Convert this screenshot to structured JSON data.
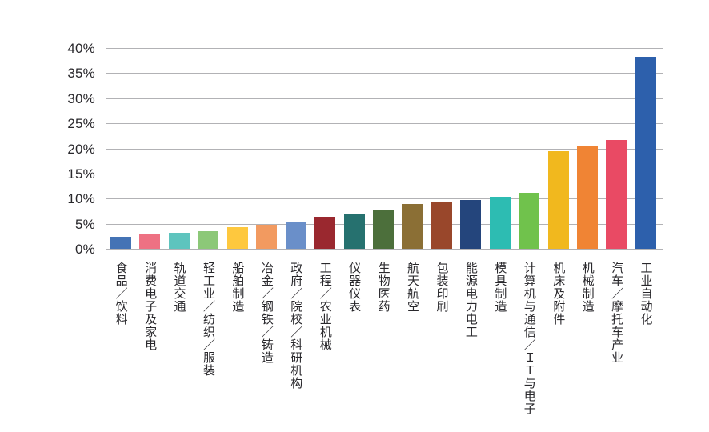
{
  "chart_data": {
    "type": "bar",
    "title": "",
    "xlabel": "",
    "ylabel": "",
    "unit": "%",
    "ylim": [
      0,
      40
    ],
    "grid": "horizontal-only",
    "legend": "none",
    "y_tick_labels": [
      "40%",
      "35%",
      "30%",
      "25%",
      "20%",
      "15%",
      "10%",
      "5%",
      "0%"
    ],
    "y_tick_values": [
      40,
      35,
      30,
      25,
      20,
      15,
      10,
      5,
      0
    ],
    "categories": [
      "食品／饮料",
      "消费电子及家电",
      "轨道交通",
      "轻工业／纺织／服装",
      "船舶制造",
      "冶金／钢铁／铸造",
      "政府／院校／科研机构",
      "工程／农业机械",
      "仪器仪表",
      "生物医药",
      "航天航空",
      "包装印刷",
      "能源电力电工",
      "模具制造",
      "计算机与通信／ＩＴ与电子",
      "机床及附件",
      "机械制造",
      "汽车／摩托车产业",
      "工业自动化"
    ],
    "values": [
      2.4,
      2.9,
      3.2,
      3.5,
      4.3,
      4.8,
      5.5,
      6.4,
      6.9,
      7.7,
      8.9,
      9.4,
      9.8,
      10.3,
      11.1,
      19.4,
      20.6,
      21.7,
      38.3
    ],
    "bar_colors": [
      "#4473B5",
      "#EE7183",
      "#5EC4BE",
      "#8CC878",
      "#FEC83E",
      "#F29A60",
      "#6A8FC9",
      "#9A282F",
      "#26716F",
      "#4C6F3B",
      "#8B6F35",
      "#99472B",
      "#24457C",
      "#2DBCB2",
      "#70C24C",
      "#F1B81E",
      "#F08434",
      "#E94A64",
      "#2D60AC"
    ]
  },
  "colors": {
    "background": "#ffffff",
    "gridline": "#b2b2b5",
    "axis_text": "#29282c"
  }
}
